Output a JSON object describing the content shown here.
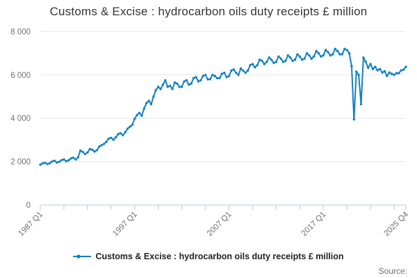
{
  "title": "Customs & Excise : hydrocarbon oils duty receipts £ million",
  "legend": {
    "label": "Customs & Excise : hydrocarbon oils duty receipts £ million"
  },
  "source_label": "Source:",
  "colors": {
    "line": "#1380c4",
    "grid": "#e6e6e6",
    "axis": "#c8d4e3",
    "tick_text": "#707070",
    "title_text": "#333333",
    "legend_text": "#222222"
  },
  "chart_data": {
    "type": "line",
    "title": "Customs & Excise : hydrocarbon oils duty receipts £ million",
    "xlabel": "",
    "ylabel": "",
    "x_start": "1987 Q1",
    "x_end": "2025 Q4",
    "x_frequency": "quarterly",
    "ylim": [
      0,
      8000
    ],
    "grid": "horizontal",
    "legend_position": "bottom",
    "y_ticks": [
      {
        "value": 0,
        "label": "0"
      },
      {
        "value": 2000,
        "label": "2 000"
      },
      {
        "value": 4000,
        "label": "4 000"
      },
      {
        "value": 6000,
        "label": "6 000"
      },
      {
        "value": 8000,
        "label": "8 000"
      }
    ],
    "x_ticks": [
      {
        "index": 0,
        "label": "1987 Q1"
      },
      {
        "index": 40,
        "label": "1997 Q1"
      },
      {
        "index": 80,
        "label": "2007 Q1"
      },
      {
        "index": 120,
        "label": "2017 Q1"
      },
      {
        "index": 155,
        "label": "2025 Q4"
      }
    ],
    "minor_tick_every": 10,
    "series": [
      {
        "name": "Customs & Excise : hydrocarbon oils duty receipts £ million",
        "values": [
          1860,
          1920,
          1950,
          1890,
          1930,
          2010,
          2040,
          1960,
          1990,
          2070,
          2100,
          2020,
          2060,
          2150,
          2180,
          2100,
          2200,
          2510,
          2450,
          2350,
          2420,
          2580,
          2550,
          2470,
          2530,
          2690,
          2760,
          2820,
          2910,
          3060,
          3100,
          3010,
          3120,
          3270,
          3310,
          3220,
          3360,
          3520,
          3610,
          3700,
          3980,
          4150,
          4250,
          4120,
          4450,
          4700,
          4800,
          4650,
          5000,
          5300,
          5450,
          5350,
          5550,
          5750,
          5450,
          5500,
          5350,
          5650,
          5600,
          5450,
          5450,
          5700,
          5750,
          5550,
          5600,
          5850,
          5900,
          5700,
          5750,
          5950,
          6000,
          5800,
          5800,
          6000,
          5950,
          5850,
          5850,
          6050,
          6100,
          5900,
          5950,
          6200,
          6250,
          6100,
          6000,
          6300,
          6200,
          6100,
          6200,
          6450,
          6500,
          6350,
          6450,
          6700,
          6650,
          6500,
          6600,
          6800,
          6700,
          6550,
          6600,
          6850,
          6750,
          6600,
          6650,
          6900,
          6800,
          6650,
          6700,
          6950,
          6850,
          6700,
          6750,
          7000,
          6900,
          6750,
          6850,
          7100,
          7000,
          6850,
          6900,
          7150,
          7050,
          6900,
          6950,
          7200,
          7100,
          6950,
          6950,
          7200,
          7150,
          7000,
          6400,
          3950,
          6150,
          6000,
          4650,
          6800,
          6600,
          6330,
          6500,
          6270,
          6370,
          6210,
          6270,
          6110,
          6170,
          5950,
          6110,
          6050,
          6000,
          6080,
          6080,
          6210,
          6240,
          6370
        ]
      }
    ]
  }
}
